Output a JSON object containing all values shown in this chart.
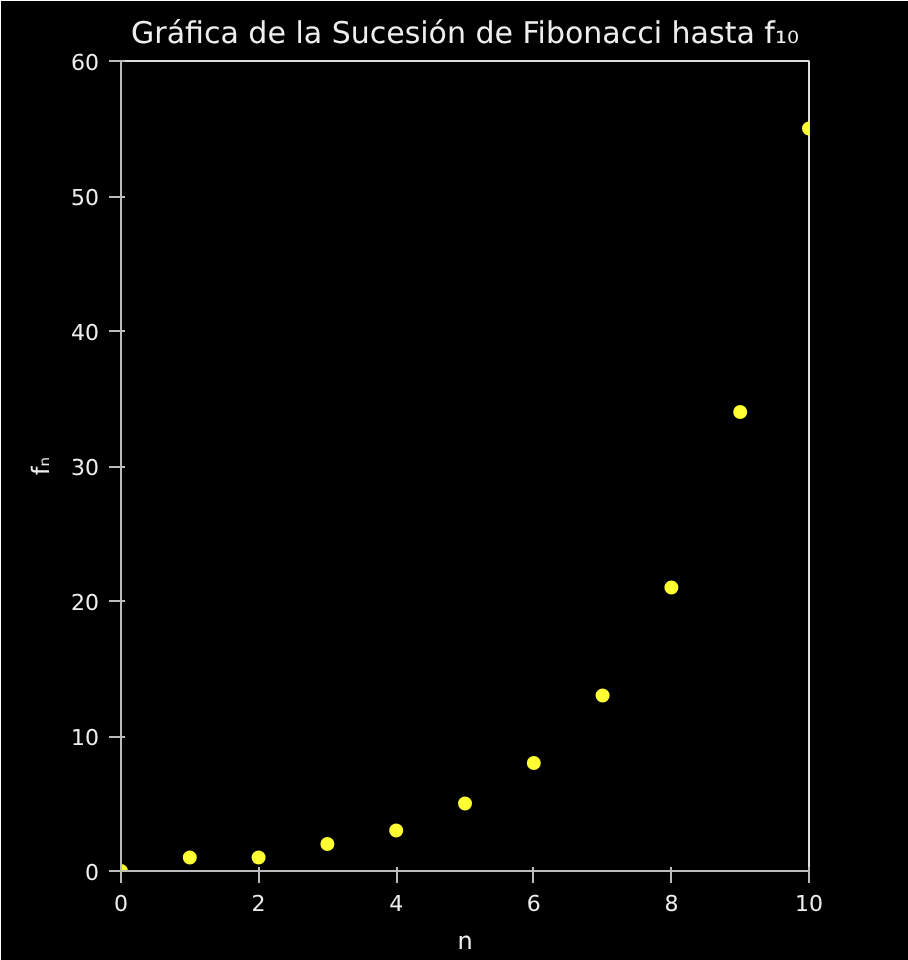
{
  "chart_data": {
    "type": "scatter",
    "title": "Gráfica de la Sucesión de Fibonacci hasta f₁₀",
    "xlabel": "n",
    "ylabel": "fₙ",
    "x": [
      0,
      1,
      2,
      3,
      4,
      5,
      6,
      7,
      8,
      9,
      10
    ],
    "series": [
      {
        "color": "#ffff33",
        "values": [
          0,
          1,
          1,
          2,
          3,
          5,
          8,
          13,
          21,
          34,
          55
        ]
      }
    ],
    "xlim": [
      0,
      10
    ],
    "ylim": [
      0,
      60
    ],
    "xticks": [
      0,
      2,
      4,
      6,
      8,
      10
    ],
    "yticks": [
      0,
      10,
      20,
      30,
      40,
      50,
      60
    ],
    "marker": "circle",
    "grid": false
  }
}
